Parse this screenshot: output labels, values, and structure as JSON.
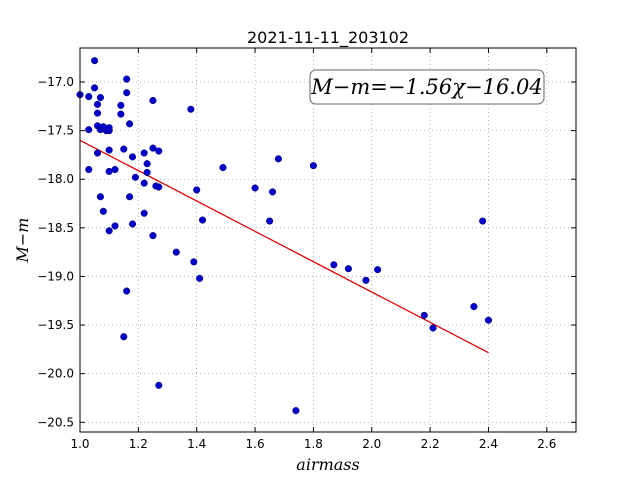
{
  "chart_data": {
    "type": "scatter",
    "title": "2021-11-11_203102",
    "xlabel": "airmass",
    "ylabel": "M−m",
    "xlim": [
      1.0,
      2.7
    ],
    "ylim": [
      -20.6,
      -16.65
    ],
    "y_inverted": true,
    "grid": true,
    "x_ticks": [
      1.0,
      1.2,
      1.4,
      1.6,
      1.8,
      2.0,
      2.2,
      2.4,
      2.6
    ],
    "x_tick_labels": [
      "1.0",
      "1.2",
      "1.4",
      "1.6",
      "1.8",
      "2.0",
      "2.2",
      "2.4",
      "2.6"
    ],
    "y_ticks": [
      -17.0,
      -17.5,
      -18.0,
      -18.5,
      -19.0,
      -19.5,
      -20.0,
      -20.5
    ],
    "y_tick_labels": [
      "−17.0",
      "−17.5",
      "−18.0",
      "−18.5",
      "−19.0",
      "−19.5",
      "−20.0",
      "−20.5"
    ],
    "annotation": "M−m=−1.56χ−16.04",
    "fit": {
      "slope": -1.56,
      "intercept": -16.04,
      "x_range": [
        1.0,
        2.4
      ]
    },
    "colors": {
      "points": "#0000cc",
      "fit_line": "#dd0000",
      "grid": "#888888"
    },
    "series": [
      {
        "points": [
          [
            1.0,
            -17.13
          ],
          [
            1.03,
            -17.15
          ],
          [
            1.05,
            -16.78
          ],
          [
            1.05,
            -17.06
          ],
          [
            1.06,
            -17.23
          ],
          [
            1.06,
            -17.32
          ],
          [
            1.07,
            -17.16
          ],
          [
            1.03,
            -17.49
          ],
          [
            1.06,
            -17.45
          ],
          [
            1.07,
            -17.49
          ],
          [
            1.08,
            -17.46
          ],
          [
            1.09,
            -17.5
          ],
          [
            1.1,
            -17.5
          ],
          [
            1.1,
            -17.47
          ],
          [
            1.06,
            -17.73
          ],
          [
            1.1,
            -17.7
          ],
          [
            1.03,
            -17.9
          ],
          [
            1.1,
            -17.92
          ],
          [
            1.12,
            -17.9
          ],
          [
            1.14,
            -17.33
          ],
          [
            1.14,
            -17.24
          ],
          [
            1.16,
            -17.11
          ],
          [
            1.16,
            -16.97
          ],
          [
            1.17,
            -17.43
          ],
          [
            1.15,
            -17.69
          ],
          [
            1.18,
            -17.77
          ],
          [
            1.19,
            -17.98
          ],
          [
            1.17,
            -18.18
          ],
          [
            1.22,
            -18.04
          ],
          [
            1.23,
            -17.93
          ],
          [
            1.22,
            -17.73
          ],
          [
            1.23,
            -17.84
          ],
          [
            1.25,
            -17.68
          ],
          [
            1.26,
            -18.07
          ],
          [
            1.27,
            -18.08
          ],
          [
            1.27,
            -17.71
          ],
          [
            1.25,
            -17.19
          ],
          [
            1.07,
            -18.18
          ],
          [
            1.08,
            -18.33
          ],
          [
            1.1,
            -18.53
          ],
          [
            1.12,
            -18.48
          ],
          [
            1.18,
            -18.46
          ],
          [
            1.22,
            -18.35
          ],
          [
            1.25,
            -18.58
          ],
          [
            1.33,
            -18.75
          ],
          [
            1.38,
            -17.28
          ],
          [
            1.4,
            -18.11
          ],
          [
            1.42,
            -18.42
          ],
          [
            1.39,
            -18.85
          ],
          [
            1.41,
            -19.02
          ],
          [
            1.16,
            -19.15
          ],
          [
            1.15,
            -19.62
          ],
          [
            1.27,
            -20.12
          ],
          [
            1.49,
            -17.88
          ],
          [
            1.6,
            -18.09
          ],
          [
            1.65,
            -18.43
          ],
          [
            1.66,
            -18.13
          ],
          [
            1.68,
            -17.79
          ],
          [
            1.8,
            -17.86
          ],
          [
            1.74,
            -20.38
          ],
          [
            1.87,
            -18.88
          ],
          [
            1.92,
            -18.92
          ],
          [
            1.98,
            -19.04
          ],
          [
            2.02,
            -18.93
          ],
          [
            2.18,
            -19.4
          ],
          [
            2.21,
            -19.53
          ],
          [
            2.35,
            -19.31
          ],
          [
            2.38,
            -18.43
          ],
          [
            2.4,
            -19.45
          ]
        ]
      }
    ]
  }
}
